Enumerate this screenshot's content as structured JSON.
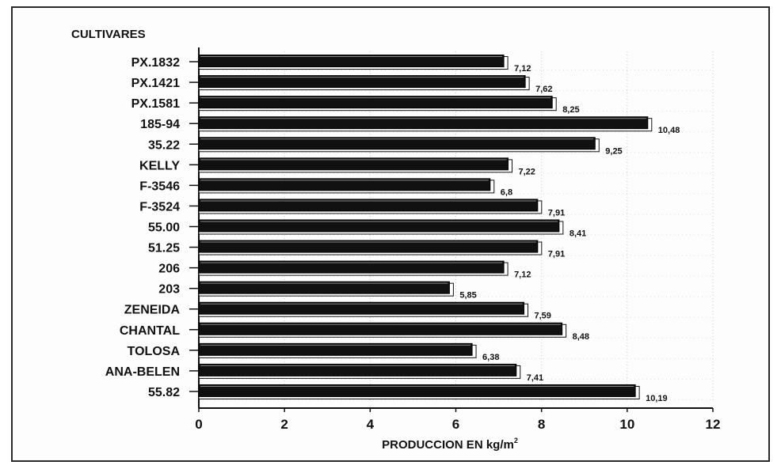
{
  "chart_data": {
    "type": "bar",
    "orientation": "horizontal",
    "category_title": "CULTIVARES",
    "xlabel": "PRODUCCION EN kg/m",
    "xlabel_superscript": "2",
    "categories": [
      "PX.1832",
      "PX.1421",
      "PX.1581",
      "185-94",
      "35.22",
      "KELLY",
      "F-3546",
      "F-3524",
      "55.00",
      "51.25",
      "206",
      "203",
      "ZENEIDA",
      "CHANTAL",
      "TOLOSA",
      "ANA-BELEN",
      "55.82"
    ],
    "values": [
      7.12,
      7.62,
      8.25,
      10.48,
      9.25,
      7.22,
      6.8,
      7.91,
      8.41,
      7.91,
      7.12,
      5.85,
      7.59,
      8.48,
      6.38,
      7.41,
      10.19
    ],
    "value_labels": [
      "7,12",
      "7,62",
      "8,25",
      "10,48",
      "9,25",
      "7,22",
      "6,8",
      "7,91",
      "8,41",
      "7,91",
      "7,12",
      "5,85",
      "7,59",
      "8,48",
      "6,38",
      "7,41",
      "10,19"
    ],
    "xlim": [
      0,
      12
    ],
    "xticks": [
      0,
      2,
      4,
      6,
      8,
      10,
      12
    ],
    "grid": true,
    "bar_color": "#111111"
  }
}
